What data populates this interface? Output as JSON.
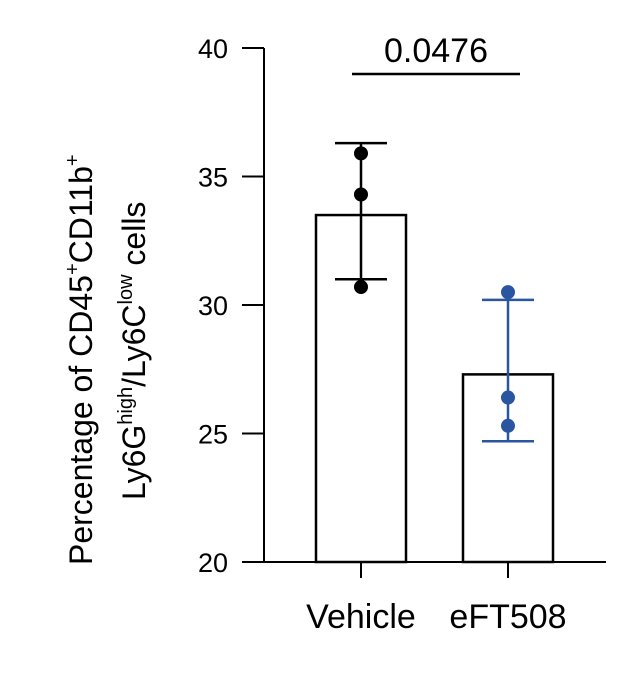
{
  "chart_data": {
    "type": "bar",
    "categories": [
      "Vehicle",
      "eFT508"
    ],
    "series": [
      {
        "values": [
          33.5,
          27.3
        ],
        "error_upper": [
          36.3,
          30.2
        ],
        "error_lower": [
          31.0,
          24.7
        ],
        "points": [
          [
            35.9,
            34.3,
            30.7
          ],
          [
            30.5,
            26.4,
            25.3
          ]
        ],
        "point_colors": [
          "#000000",
          "#2a55a0"
        ]
      }
    ],
    "ylim": [
      20,
      40
    ],
    "yticks": [
      "20",
      "25",
      "30",
      "35",
      "40"
    ],
    "ylabel": {
      "line1": {
        "text": "Percentage of CD45",
        "sup1": "+",
        "mid": "CD11b",
        "sup2": "+"
      },
      "line2": {
        "text": "Ly6G",
        "sup1": "high",
        "mid": "/Ly6C",
        "sup2": "low",
        "tail": " cells"
      }
    },
    "significance": {
      "label": "0.0476",
      "between": [
        "Vehicle",
        "eFT508"
      ]
    },
    "grid": false,
    "legend": "none"
  }
}
